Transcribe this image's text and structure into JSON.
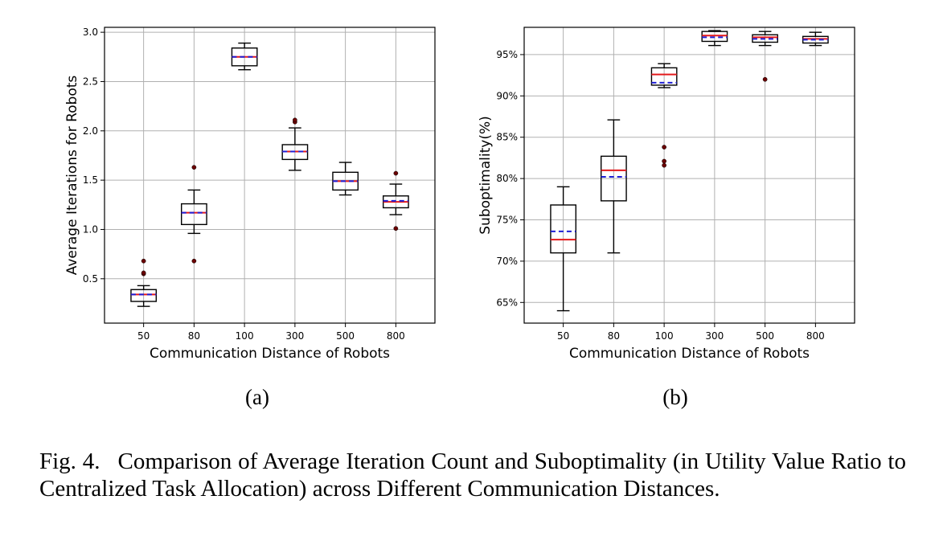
{
  "caption": {
    "label": "Fig. 4.",
    "text": "Comparison of Average Iteration Count and Suboptimality (in Utility Value Ratio to Centralized Task Allocation) across Different Communication Distances."
  },
  "colors": {
    "median": "#e41a1c",
    "mean": "#1f1fd6",
    "outlier": "#6b0000",
    "box": "#000000",
    "grid": "#b0b0b0"
  },
  "chart_data": [
    {
      "type": "box",
      "panel_label": "(a)",
      "xlabel": "Communication Distance of Robots",
      "ylabel": "Average Iterations for Robots",
      "categories": [
        "50",
        "80",
        "100",
        "300",
        "500",
        "800"
      ],
      "ylim": [
        0.05,
        3.05
      ],
      "yticks": [
        0.5,
        1.0,
        1.5,
        2.0,
        2.5,
        3.0
      ],
      "ytick_labels": [
        "0.5",
        "1.0",
        "1.5",
        "2.0",
        "2.5",
        "3.0"
      ],
      "grid": true,
      "boxes": [
        {
          "whislo": 0.22,
          "q1": 0.27,
          "med": 0.34,
          "mean": 0.34,
          "q3": 0.39,
          "whishi": 0.43,
          "fliers": [
            0.55,
            0.56,
            0.68
          ]
        },
        {
          "whislo": 0.96,
          "q1": 1.05,
          "med": 1.17,
          "mean": 1.17,
          "q3": 1.26,
          "whishi": 1.4,
          "fliers": [
            0.68,
            1.63
          ]
        },
        {
          "whislo": 2.62,
          "q1": 2.66,
          "med": 2.75,
          "mean": 2.75,
          "q3": 2.84,
          "whishi": 2.89,
          "fliers": []
        },
        {
          "whislo": 1.6,
          "q1": 1.71,
          "med": 1.79,
          "mean": 1.79,
          "q3": 1.86,
          "whishi": 2.03,
          "fliers": [
            2.09,
            2.11
          ]
        },
        {
          "whislo": 1.35,
          "q1": 1.4,
          "med": 1.49,
          "mean": 1.49,
          "q3": 1.58,
          "whishi": 1.68,
          "fliers": []
        },
        {
          "whislo": 1.15,
          "q1": 1.22,
          "med": 1.28,
          "mean": 1.29,
          "q3": 1.34,
          "whishi": 1.46,
          "fliers": [
            1.01,
            1.57
          ]
        }
      ]
    },
    {
      "type": "box",
      "panel_label": "(b)",
      "xlabel": "Communication Distance of Robots",
      "ylabel": "Suboptimality(%)",
      "categories": [
        "50",
        "80",
        "100",
        "300",
        "500",
        "800"
      ],
      "ylim": [
        62.5,
        98.3
      ],
      "yticks": [
        65,
        70,
        75,
        80,
        85,
        90,
        95
      ],
      "ytick_labels": [
        "65%",
        "70%",
        "75%",
        "80%",
        "85%",
        "90%",
        "95%"
      ],
      "grid": true,
      "boxes": [
        {
          "whislo": 64.0,
          "q1": 71.0,
          "med": 72.6,
          "mean": 73.6,
          "q3": 76.8,
          "whishi": 79.0,
          "fliers": []
        },
        {
          "whislo": 71.0,
          "q1": 77.3,
          "med": 81.0,
          "mean": 80.2,
          "q3": 82.7,
          "whishi": 87.1,
          "fliers": []
        },
        {
          "whislo": 91.0,
          "q1": 91.3,
          "med": 92.6,
          "mean": 91.6,
          "q3": 93.4,
          "whishi": 93.9,
          "fliers": [
            81.6,
            82.1,
            83.8
          ]
        },
        {
          "whislo": 96.1,
          "q1": 96.6,
          "med": 97.3,
          "mean": 97.1,
          "q3": 97.8,
          "whishi": 97.9,
          "fliers": []
        },
        {
          "whislo": 96.1,
          "q1": 96.5,
          "med": 97.1,
          "mean": 96.9,
          "q3": 97.4,
          "whishi": 97.8,
          "fliers": [
            92.0
          ]
        },
        {
          "whislo": 96.1,
          "q1": 96.4,
          "med": 96.9,
          "mean": 96.8,
          "q3": 97.2,
          "whishi": 97.7,
          "fliers": []
        }
      ]
    }
  ]
}
